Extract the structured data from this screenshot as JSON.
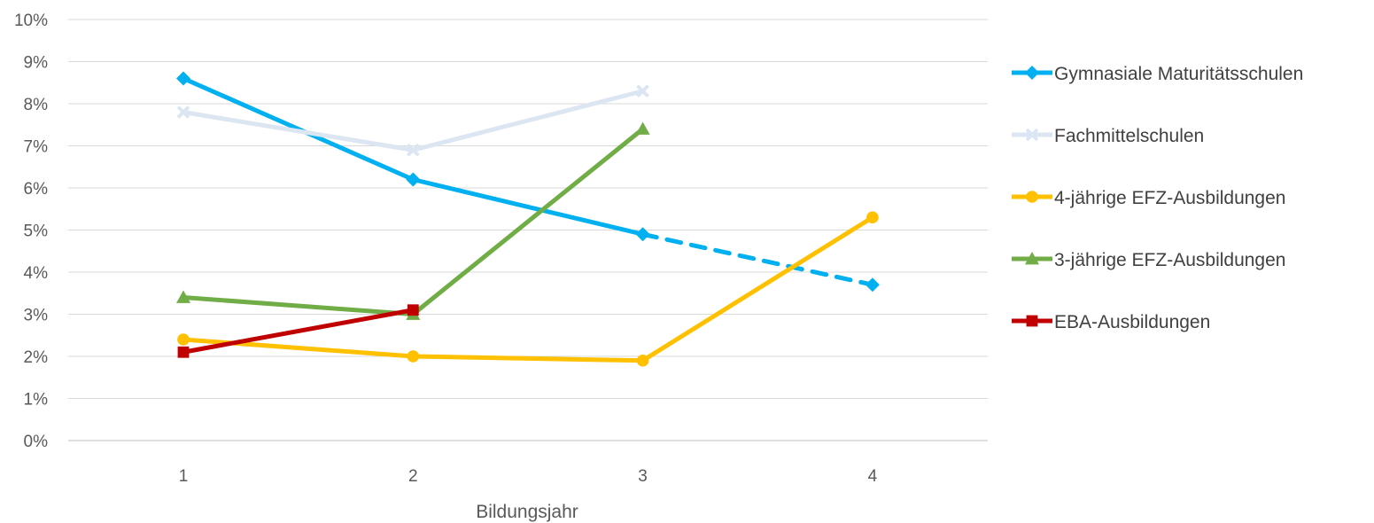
{
  "chart_data": {
    "type": "line",
    "title": "",
    "xlabel": "Bildungsjahr",
    "ylabel": "",
    "x": [
      1,
      2,
      3,
      4
    ],
    "x_tick_labels": [
      "1",
      "2",
      "3",
      "4"
    ],
    "ylim": [
      0,
      10
    ],
    "y_tick_labels": [
      "0%",
      "1%",
      "2%",
      "3%",
      "4%",
      "5%",
      "6%",
      "7%",
      "8%",
      "9%",
      "10%"
    ],
    "grid": true,
    "legend_position": "right",
    "series": [
      {
        "name": "Gymnasiale Maturitätsschulen",
        "color": "#00b0f0",
        "marker": "diamond",
        "points": [
          [
            1,
            8.6
          ],
          [
            2,
            6.2
          ],
          [
            3,
            4.9
          ],
          [
            4,
            3.7
          ]
        ],
        "dashed_from_x": 3
      },
      {
        "name": "Fachmittelschulen",
        "color": "#dce6f2",
        "marker": "x",
        "points": [
          [
            1,
            7.8
          ],
          [
            2,
            6.9
          ],
          [
            3,
            8.3
          ]
        ]
      },
      {
        "name": "4-jährige EFZ-Ausbildungen",
        "color": "#ffc000",
        "marker": "circle",
        "points": [
          [
            1,
            2.4
          ],
          [
            2,
            2.0
          ],
          [
            3,
            1.9
          ],
          [
            4,
            5.3
          ]
        ]
      },
      {
        "name": "3-jährige EFZ-Ausbildungen",
        "color": "#70ad47",
        "marker": "triangle",
        "points": [
          [
            1,
            3.4
          ],
          [
            2,
            3.0
          ],
          [
            3,
            7.4
          ]
        ]
      },
      {
        "name": "EBA-Ausbildungen",
        "color": "#c00000",
        "marker": "square",
        "points": [
          [
            1,
            2.1
          ],
          [
            2,
            3.1
          ]
        ]
      }
    ]
  }
}
